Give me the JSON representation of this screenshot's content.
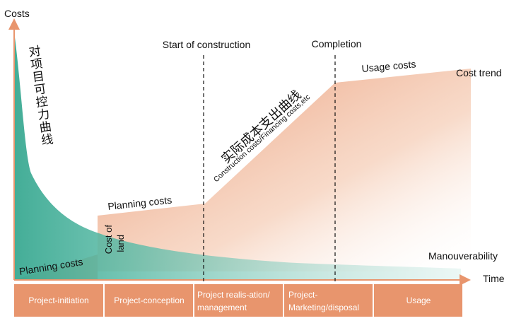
{
  "axes": {
    "y_label": "Costs",
    "x_label": "Time"
  },
  "milestones": {
    "start_of_construction": "Start of construction",
    "completion": "Completion"
  },
  "labels": {
    "controllability_curve": "对项目可控力曲线",
    "actual_cost_curve": "实际成本支出曲线",
    "construction_costs": "Construction costs/Financing costs,etc",
    "usage_costs": "Usage costs",
    "cost_trend": "Cost trend",
    "planning_costs_upper": "Planning costs",
    "planning_costs_lower": "Planning costs",
    "cost_of_land_1": "Cost of",
    "cost_of_land_2": "land",
    "manouverability": "Manouverability"
  },
  "phases": [
    {
      "label_lines": [
        "Project-initiation"
      ]
    },
    {
      "label_lines": [
        "Project-conception"
      ]
    },
    {
      "label_lines": [
        "Project realis-ation/",
        "management"
      ]
    },
    {
      "label_lines": [
        "Project-",
        "Marketing/disposal"
      ]
    },
    {
      "label_lines": [
        "Usage"
      ]
    }
  ],
  "colors": {
    "teal": "#4fb3a0",
    "salmon": "#e8956d",
    "phase_bar": "#e8956d",
    "axis": "#e8956d",
    "text": "#111111"
  }
}
